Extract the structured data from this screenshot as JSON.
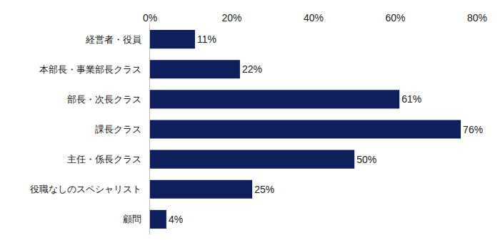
{
  "chart_data": {
    "type": "bar",
    "orientation": "horizontal",
    "categories": [
      "経営者・役員",
      "本部長・事業部長クラス",
      "部長・次長クラス",
      "課長クラス",
      "主任・係長クラス",
      "役職なしのスペシャリスト",
      "顧問"
    ],
    "values": [
      11,
      22,
      61,
      76,
      50,
      25,
      4
    ],
    "value_labels": [
      "11%",
      "22%",
      "61%",
      "76%",
      "50%",
      "25%",
      "4%"
    ],
    "data_labels": true,
    "color": "#0e1f5b",
    "xlim": [
      0,
      80
    ],
    "xticks": [
      {
        "value": 0,
        "label": "0%"
      },
      {
        "value": 20,
        "label": "20%"
      },
      {
        "value": 40,
        "label": "40%"
      },
      {
        "value": 60,
        "label": "60%"
      },
      {
        "value": 80,
        "label": "80%"
      }
    ],
    "grid": false
  }
}
